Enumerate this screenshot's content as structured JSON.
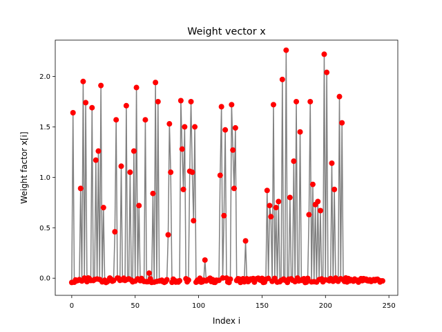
{
  "chart_data": {
    "type": "scatter",
    "title": "Weight vector x",
    "xlabel": "Index i",
    "ylabel": "Weight factor x[i]",
    "xlim": [
      -13,
      257
    ],
    "ylim": [
      -0.17,
      2.36
    ],
    "xticks": [
      0,
      50,
      100,
      150,
      200,
      250
    ],
    "yticks": [
      0.0,
      0.5,
      1.0,
      1.5,
      2.0
    ],
    "xtick_labels": [
      "0",
      "50",
      "100",
      "150",
      "200",
      "250"
    ],
    "ytick_labels": [
      "0.0",
      "0.5",
      "1.0",
      "1.5",
      "2.0"
    ],
    "grid": false,
    "line_color": "#808080",
    "marker_color": "#ff0000",
    "n_points": 246,
    "baseline": -0.02,
    "peaks": [
      [
        1,
        1.64
      ],
      [
        7,
        0.89
      ],
      [
        9,
        1.95
      ],
      [
        11,
        1.74
      ],
      [
        16,
        1.69
      ],
      [
        19,
        1.17
      ],
      [
        21,
        1.26
      ],
      [
        23,
        1.91
      ],
      [
        25,
        0.7
      ],
      [
        34,
        0.46
      ],
      [
        35,
        1.57
      ],
      [
        39,
        1.11
      ],
      [
        43,
        1.71
      ],
      [
        46,
        1.05
      ],
      [
        49,
        1.26
      ],
      [
        51,
        1.89
      ],
      [
        53,
        0.72
      ],
      [
        58,
        1.57
      ],
      [
        61,
        0.05
      ],
      [
        64,
        0.84
      ],
      [
        66,
        1.94
      ],
      [
        68,
        1.75
      ],
      [
        76,
        0.43
      ],
      [
        77,
        1.53
      ],
      [
        78,
        1.05
      ],
      [
        86,
        1.76
      ],
      [
        87,
        1.28
      ],
      [
        88,
        0.88
      ],
      [
        89,
        1.5
      ],
      [
        93,
        1.06
      ],
      [
        94,
        1.75
      ],
      [
        95,
        1.05
      ],
      [
        96,
        0.57
      ],
      [
        97,
        1.5
      ],
      [
        105,
        0.18
      ],
      [
        117,
        1.02
      ],
      [
        118,
        1.7
      ],
      [
        120,
        0.62
      ],
      [
        121,
        1.47
      ],
      [
        126,
        1.72
      ],
      [
        127,
        1.27
      ],
      [
        128,
        0.89
      ],
      [
        129,
        1.49
      ],
      [
        137,
        0.37
      ],
      [
        154,
        0.87
      ],
      [
        156,
        0.72
      ],
      [
        157,
        0.61
      ],
      [
        159,
        1.72
      ],
      [
        161,
        0.7
      ],
      [
        163,
        0.76
      ],
      [
        166,
        1.97
      ],
      [
        169,
        2.26
      ],
      [
        172,
        0.8
      ],
      [
        175,
        1.16
      ],
      [
        177,
        1.75
      ],
      [
        180,
        1.45
      ],
      [
        187,
        0.63
      ],
      [
        188,
        1.75
      ],
      [
        190,
        0.93
      ],
      [
        192,
        0.73
      ],
      [
        194,
        0.76
      ],
      [
        196,
        0.67
      ],
      [
        199,
        2.22
      ],
      [
        201,
        2.04
      ],
      [
        205,
        1.14
      ],
      [
        207,
        0.88
      ],
      [
        211,
        1.8
      ],
      [
        213,
        1.54
      ]
    ]
  }
}
